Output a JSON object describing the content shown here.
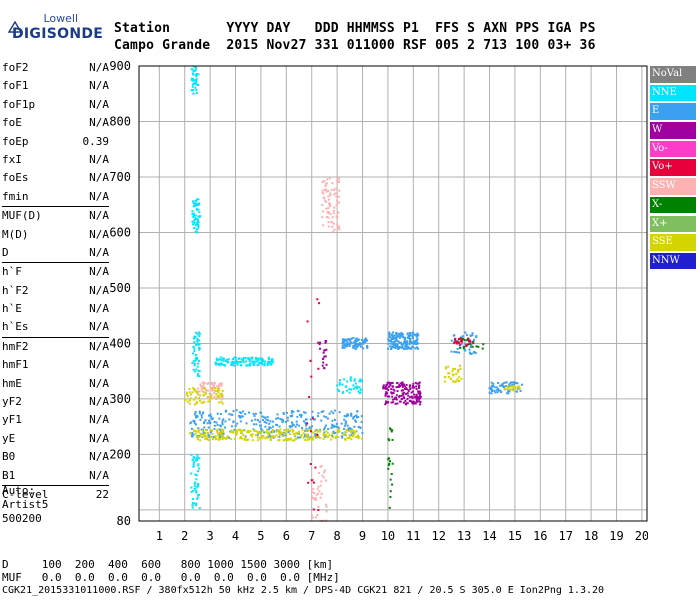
{
  "logo": {
    "brand_top": "Lowell",
    "brand_bottom": "DIGISONDE"
  },
  "header": {
    "labels": "Station       YYYY DAY   DDD HHMMSS P1  FFS S AXN PPS IGA PS",
    "values": "Campo Grande  2015 Nov27 331 011000 RSF 005 2 713 100 03+ 36"
  },
  "parameter_groups": [
    [
      {
        "name": "foF2",
        "value": "N/A"
      },
      {
        "name": "foF1",
        "value": "N/A"
      },
      {
        "name": "foF1p",
        "value": "N/A"
      },
      {
        "name": "foE",
        "value": "N/A"
      },
      {
        "name": "foEp",
        "value": "0.39"
      },
      {
        "name": "fxI",
        "value": "N/A"
      },
      {
        "name": "foEs",
        "value": "N/A"
      },
      {
        "name": "fmin",
        "value": "N/A"
      }
    ],
    [
      {
        "name": "MUF(D)",
        "value": "N/A"
      },
      {
        "name": "M(D)",
        "value": "N/A"
      },
      {
        "name": "D",
        "value": "N/A"
      }
    ],
    [
      {
        "name": "h`F",
        "value": "N/A"
      },
      {
        "name": "h`F2",
        "value": "N/A"
      },
      {
        "name": "h`E",
        "value": "N/A"
      },
      {
        "name": "h`Es",
        "value": "N/A"
      }
    ],
    [
      {
        "name": "hmF2",
        "value": "N/A"
      },
      {
        "name": "hmF1",
        "value": "N/A"
      },
      {
        "name": "hmE",
        "value": "N/A"
      },
      {
        "name": "yF2",
        "value": "N/A"
      },
      {
        "name": "yF1",
        "value": "N/A"
      },
      {
        "name": "yE",
        "value": "N/A"
      },
      {
        "name": "B0",
        "value": "N/A"
      },
      {
        "name": "B1",
        "value": "N/A"
      }
    ],
    [
      {
        "name": "C-level",
        "value": "22"
      }
    ]
  ],
  "autoscaling": {
    "line1": "Auto:",
    "line2": "Artist5",
    "line3": "500200"
  },
  "footer": {
    "d_row": "D     100  200  400  600   800 1000 1500 3000 [km]",
    "muf_row": "MUF   0.0  0.0  0.0  0.0   0.0  0.0  0.0  0.0 [MHz]",
    "info": "CGK21_2015331011000.RSF / 380fx512h 50 kHz 2.5 km / DPS-4D CGK21 821 / 20.5 S 305.0 E Ion2Png 1.3.20"
  },
  "legend": [
    {
      "label": "NoVal",
      "color": "#808080"
    },
    {
      "label": "NNE",
      "color": "#00e5ff"
    },
    {
      "label": "E",
      "color": "#3aa0f0"
    },
    {
      "label": "W",
      "color": "#a000a0"
    },
    {
      "label": "Vo-",
      "color": "#ff3cc8"
    },
    {
      "label": "Vo+",
      "color": "#e8003c"
    },
    {
      "label": "SSW",
      "color": "#ffb0b0"
    },
    {
      "label": "X-",
      "color": "#008000"
    },
    {
      "label": "X+",
      "color": "#7fbf5f"
    },
    {
      "label": "SSE",
      "color": "#d4d400"
    },
    {
      "label": "NNW",
      "color": "#2020d0"
    }
  ],
  "chart_data": {
    "type": "scatter",
    "title": "",
    "xlabel": "",
    "ylabel": "",
    "xlim": [
      0.2,
      20.2
    ],
    "ylim": [
      80,
      900
    ],
    "x_ticks": [
      1,
      2,
      3,
      4,
      5,
      6,
      7,
      8,
      9,
      10,
      11,
      12,
      13,
      14,
      15,
      16,
      17,
      18,
      19,
      20
    ],
    "y_ticks": [
      100,
      200,
      300,
      400,
      500,
      600,
      700,
      800,
      900
    ],
    "y_tick_labels_shown": [
      "80",
      200,
      300,
      400,
      500,
      600,
      700,
      800,
      900
    ],
    "grid": true,
    "series": [
      {
        "name": "NNE",
        "color": "#00e5ff",
        "clusters": [
          {
            "x": [
              2.3,
              2.6
            ],
            "y": [
              600,
              660
            ],
            "n": 60
          },
          {
            "x": [
              2.25,
              2.55
            ],
            "y": [
              850,
              900
            ],
            "n": 40
          },
          {
            "x": [
              2.25,
              2.6
            ],
            "y": [
              100,
              200
            ],
            "n": 50
          },
          {
            "x": [
              3.2,
              5.5
            ],
            "y": [
              360,
              375
            ],
            "n": 120
          },
          {
            "x": [
              2.3,
              2.6
            ],
            "y": [
              340,
              420
            ],
            "n": 50
          },
          {
            "x": [
              8.0,
              9.0
            ],
            "y": [
              310,
              340
            ],
            "n": 40
          }
        ]
      },
      {
        "name": "E",
        "color": "#3aa0f0",
        "clusters": [
          {
            "x": [
              2.2,
              9.0
            ],
            "y": [
              230,
              280
            ],
            "n": 350
          },
          {
            "x": [
              10.0,
              11.2
            ],
            "y": [
              390,
              420
            ],
            "n": 180
          },
          {
            "x": [
              8.2,
              9.2
            ],
            "y": [
              390,
              410
            ],
            "n": 90
          },
          {
            "x": [
              12.5,
              13.5
            ],
            "y": [
              380,
              420
            ],
            "n": 50
          },
          {
            "x": [
              14.0,
              15.3
            ],
            "y": [
              310,
              330
            ],
            "n": 60
          }
        ]
      },
      {
        "name": "W",
        "color": "#a000a0",
        "clusters": [
          {
            "x": [
              9.8,
              11.3
            ],
            "y": [
              290,
              330
            ],
            "n": 160
          },
          {
            "x": [
              7.3,
              7.6
            ],
            "y": [
              350,
              410
            ],
            "n": 20
          }
        ]
      },
      {
        "name": "SSW",
        "color": "#ffb0b0",
        "clusters": [
          {
            "x": [
              7.4,
              8.1
            ],
            "y": [
              600,
              700
            ],
            "n": 80
          },
          {
            "x": [
              2.5,
              3.5
            ],
            "y": [
              300,
              330
            ],
            "n": 60
          },
          {
            "x": [
              7.0,
              7.6
            ],
            "y": [
              80,
              180
            ],
            "n": 40
          }
        ]
      },
      {
        "name": "SSE",
        "color": "#d4d400",
        "clusters": [
          {
            "x": [
              2.2,
              9.0
            ],
            "y": [
              225,
              245
            ],
            "n": 260
          },
          {
            "x": [
              2.0,
              3.5
            ],
            "y": [
              290,
              320
            ],
            "n": 60
          },
          {
            "x": [
              12.2,
              12.9
            ],
            "y": [
              330,
              360
            ],
            "n": 30
          },
          {
            "x": [
              14.6,
              15.2
            ],
            "y": [
              315,
              325
            ],
            "n": 20
          }
        ]
      },
      {
        "name": "X-",
        "color": "#008000",
        "clusters": [
          {
            "x": [
              10.0,
              10.2
            ],
            "y": [
              80,
              250
            ],
            "n": 20
          },
          {
            "x": [
              12.8,
              13.8
            ],
            "y": [
              390,
              410
            ],
            "n": 20
          }
        ]
      },
      {
        "name": "Vo+",
        "color": "#e8003c",
        "clusters": [
          {
            "x": [
              6.8,
              7.3
            ],
            "y": [
              80,
              500
            ],
            "n": 20
          },
          {
            "x": [
              12.6,
              13.4
            ],
            "y": [
              395,
              410
            ],
            "n": 25
          }
        ]
      }
    ]
  }
}
